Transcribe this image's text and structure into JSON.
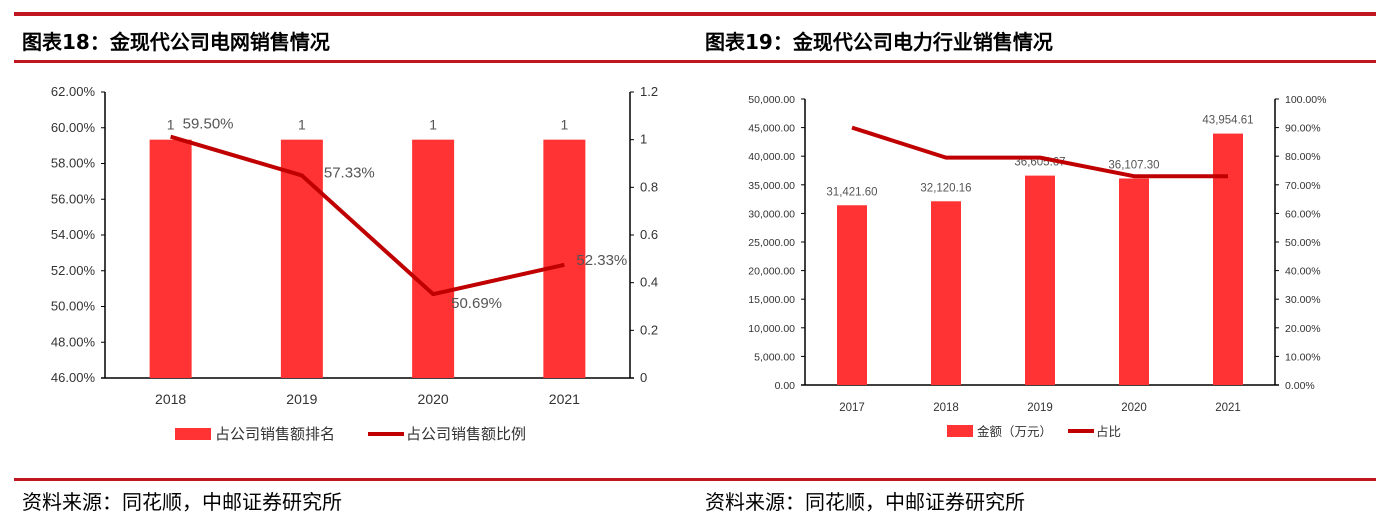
{
  "chart_data": [
    {
      "type": "bar+line",
      "title": "图表18：金现代公司电网销售情况",
      "source": "资料来源：同花顺，中邮证券研究所",
      "categories": [
        "2018",
        "2019",
        "2020",
        "2021"
      ],
      "y_left": {
        "ticks": [
          "62.00%",
          "60.00%",
          "58.00%",
          "56.00%",
          "54.00%",
          "52.00%",
          "50.00%",
          "48.00%",
          "46.00%"
        ],
        "range": [
          46,
          62
        ]
      },
      "y_right": {
        "ticks": [
          "1.2",
          "1",
          "0.8",
          "0.6",
          "0.4",
          "0.2",
          "0"
        ],
        "range": [
          0,
          1.2
        ]
      },
      "series": [
        {
          "name": "占公司销售额排名",
          "type": "bar",
          "axis": "right",
          "values": [
            1,
            1,
            1,
            1
          ],
          "labels": [
            "1",
            "1",
            "1",
            "1"
          ],
          "color": "#ff3333"
        },
        {
          "name": "占公司销售额比例",
          "type": "line",
          "axis": "left",
          "values": [
            59.5,
            57.33,
            50.69,
            52.33
          ],
          "labels": [
            "59.50%",
            "57.33%",
            "50.69%",
            "52.33%"
          ],
          "color": "#c00000"
        }
      ],
      "legend": "bottom",
      "grid": false
    },
    {
      "type": "bar+line",
      "title": "图表19：金现代公司电力行业销售情况",
      "source": "资料来源：同花顺，中邮证券研究所",
      "categories": [
        "2017",
        "2018",
        "2019",
        "2020",
        "2021"
      ],
      "y_left": {
        "ticks": [
          "50,000.00",
          "45,000.00",
          "40,000.00",
          "35,000.00",
          "30,000.00",
          "25,000.00",
          "20,000.00",
          "15,000.00",
          "10,000.00",
          "5,000.00",
          "0.00"
        ],
        "range": [
          0,
          50000
        ]
      },
      "y_right": {
        "ticks": [
          "100.00%",
          "90.00%",
          "80.00%",
          "70.00%",
          "60.00%",
          "50.00%",
          "40.00%",
          "30.00%",
          "20.00%",
          "10.00%",
          "0.00%"
        ],
        "range": [
          0,
          100
        ]
      },
      "series": [
        {
          "name": "金额（万元）",
          "type": "bar",
          "axis": "left",
          "values": [
            31421.6,
            32120.16,
            36605.67,
            36107.3,
            43954.61
          ],
          "labels": [
            "31,421.60",
            "32,120.16",
            "36,605.67",
            "36,107.30",
            "43,954.61"
          ],
          "color": "#ff3333"
        },
        {
          "name": "占比",
          "type": "line",
          "axis": "right",
          "values": [
            90,
            79.5,
            79.5,
            73,
            73
          ],
          "color": "#c00000"
        }
      ],
      "legend": "bottom",
      "grid": false
    }
  ]
}
